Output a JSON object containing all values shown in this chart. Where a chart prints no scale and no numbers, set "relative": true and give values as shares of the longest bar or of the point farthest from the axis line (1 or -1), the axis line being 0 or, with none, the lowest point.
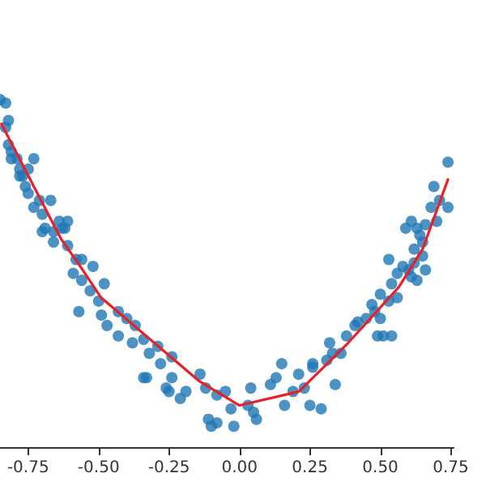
{
  "chart_data": {
    "type": "scatter",
    "relative": true,
    "tick_labels": "x",
    "grid": false,
    "xlim": [
      -0.85,
      0.76
    ],
    "xticks": [
      -0.75,
      {
        "value": -0.5,
        "label": "-0.50"
      },
      -0.25,
      {
        "value": 0,
        "label": "0.00"
      },
      0.25,
      {
        "value": 0.5,
        "label": "0.50"
      },
      0.75
    ],
    "series": [
      {
        "color": "#1f77b4",
        "marker": "circle",
        "x": [
          -0.85,
          -0.83,
          -0.82,
          -0.83,
          -0.82,
          -0.81,
          -0.79,
          -0.81,
          -0.78,
          -0.77,
          -0.75,
          -0.73,
          -0.78,
          -0.76,
          -0.75,
          -0.71,
          -0.73,
          -0.7,
          -0.67,
          -0.69,
          -0.64,
          -0.63,
          -0.62,
          -0.7,
          -0.66,
          -0.61,
          0.74,
          0.69,
          0.71,
          0.74,
          0.68,
          0.7,
          0.66,
          0.63,
          0.64,
          0.59,
          0.61,
          -0.66,
          -0.61,
          -0.58,
          -0.59,
          -0.56,
          -0.52,
          -0.56,
          -0.53,
          -0.5,
          -0.48,
          -0.57,
          -0.49,
          -0.47,
          -0.43,
          -0.4,
          -0.37,
          -0.43,
          -0.38,
          -0.34,
          -0.32,
          -0.29,
          -0.28,
          -0.24,
          -0.33,
          -0.34,
          -0.26,
          -0.24,
          -0.25,
          -0.21,
          -0.19,
          -0.14,
          -0.12,
          -0.1,
          -0.08,
          -0.05,
          -0.03,
          -0.11,
          -0.08,
          -0.02,
          0.03,
          0.05,
          0.06,
          0.04,
          0.11,
          0.13,
          0.16,
          0.15,
          0.19,
          0.21,
          0.23,
          0.25,
          0.26,
          0.29,
          0.26,
          0.31,
          0.33,
          0.34,
          0.32,
          0.36,
          0.38,
          0.41,
          0.42,
          0.45,
          0.48,
          0.47,
          0.49,
          0.51,
          0.5,
          0.53,
          0.54,
          0.56,
          0.54,
          0.5,
          0.58,
          0.6,
          0.62,
          0.61,
          0.65,
          0.62,
          0.66,
          0.63,
          0.65,
          0.56,
          0.53
        ],
        "values": [
          1.0,
          0.99,
          0.94,
          0.92,
          0.87,
          0.85,
          0.83,
          0.83,
          0.8,
          0.78,
          0.8,
          0.83,
          0.78,
          0.75,
          0.73,
          0.71,
          0.69,
          0.67,
          0.71,
          0.63,
          0.65,
          0.63,
          0.63,
          0.62,
          0.62,
          0.65,
          0.82,
          0.75,
          0.71,
          0.69,
          0.69,
          0.65,
          0.64,
          0.63,
          0.61,
          0.63,
          0.65,
          0.59,
          0.58,
          0.54,
          0.5,
          0.54,
          0.52,
          0.48,
          0.45,
          0.42,
          0.47,
          0.39,
          0.38,
          0.35,
          0.39,
          0.37,
          0.35,
          0.32,
          0.3,
          0.31,
          0.27,
          0.29,
          0.24,
          0.26,
          0.2,
          0.2,
          0.17,
          0.2,
          0.16,
          0.14,
          0.16,
          0.21,
          0.17,
          0.06,
          0.15,
          0.16,
          0.11,
          0.08,
          0.07,
          0.06,
          0.12,
          0.1,
          0.08,
          0.17,
          0.18,
          0.2,
          0.12,
          0.24,
          0.16,
          0.21,
          0.17,
          0.12,
          0.23,
          0.11,
          0.24,
          0.25,
          0.27,
          0.18,
          0.3,
          0.27,
          0.32,
          0.35,
          0.36,
          0.37,
          0.39,
          0.41,
          0.32,
          0.32,
          0.44,
          0.42,
          0.47,
          0.43,
          0.32,
          0.37,
          0.52,
          0.51,
          0.53,
          0.49,
          0.55,
          0.57,
          0.51,
          0.48,
          0.59,
          0.5,
          0.54
        ]
      },
      {
        "type": "line",
        "color": "#e8202a",
        "marker": "none",
        "line_style": "solid",
        "x": [
          -0.845,
          -0.634,
          -0.565,
          -0.491,
          -0.317,
          -0.143,
          0.0,
          0.211,
          0.386,
          0.565,
          0.65,
          0.74
        ],
        "values": [
          0.93,
          0.6,
          0.52,
          0.43,
          0.31,
          0.19,
          0.12,
          0.16,
          0.3,
          0.46,
          0.57,
          0.77
        ]
      }
    ]
  }
}
